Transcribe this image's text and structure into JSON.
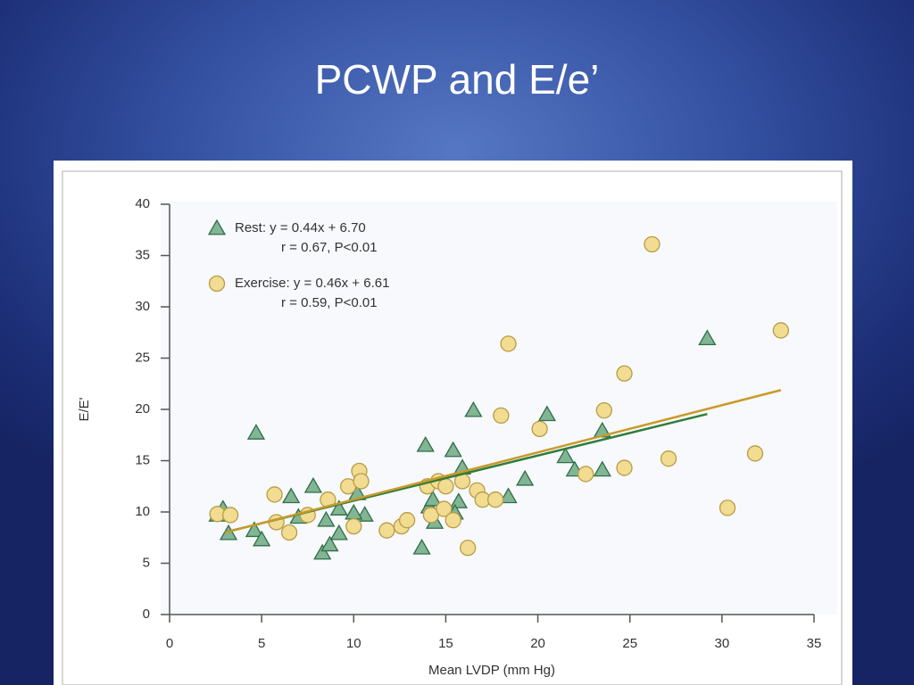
{
  "title": "PCWP and E/e’",
  "chart_data": {
    "type": "scatter",
    "xlabel": "Mean LVDP (mm Hg)",
    "ylabel": "E/E'",
    "xlim": [
      0,
      35
    ],
    "ylim": [
      0,
      40
    ],
    "xticks": [
      0,
      5,
      10,
      15,
      20,
      25,
      30,
      35
    ],
    "yticks": [
      0,
      5,
      10,
      15,
      20,
      25,
      30,
      35,
      40
    ],
    "series": [
      {
        "name": "Rest: y = 0.44x + 6.70",
        "stats": "r = 0.67, P<0.01",
        "marker": "triangle",
        "color": "#82b594",
        "edge_color": "#2f6e48",
        "line_color": "#2e7d3a",
        "fit": {
          "slope": 0.44,
          "intercept": 6.7,
          "xrange": [
            3,
            29.2
          ]
        },
        "x": [
          2.6,
          2.9,
          3.2,
          4.7,
          4.6,
          5.0,
          6.6,
          7.0,
          7.8,
          8.3,
          8.7,
          8.5,
          9.2,
          9.2,
          10.2,
          10.6,
          10.0,
          13.7,
          13.9,
          14.1,
          14.4,
          14.3,
          15.4,
          15.9,
          15.7,
          15.5,
          16.5,
          18.4,
          19.3,
          20.5,
          21.5,
          22.0,
          23.5,
          23.5,
          29.2
        ],
        "values": [
          9.7,
          10.3,
          7.9,
          17.7,
          8.2,
          7.3,
          11.5,
          9.5,
          12.5,
          6.0,
          6.8,
          9.2,
          7.9,
          10.3,
          11.8,
          9.7,
          9.9,
          6.5,
          16.5,
          10.5,
          9.0,
          11.2,
          16.0,
          14.3,
          11.0,
          9.9,
          19.9,
          11.5,
          13.2,
          19.5,
          15.4,
          14.1,
          17.9,
          14.1,
          26.9
        ]
      },
      {
        "name": "Exercise: y = 0.46x + 6.61",
        "stats": "r = 0.59, P<0.01",
        "marker": "circle",
        "color": "#f2dc92",
        "edge_color": "#b89c45",
        "line_color": "#c99a2a",
        "fit": {
          "slope": 0.46,
          "intercept": 6.61,
          "xrange": [
            3,
            33.2
          ]
        },
        "x": [
          2.6,
          3.3,
          5.7,
          5.8,
          6.5,
          7.5,
          8.6,
          9.7,
          10.3,
          10.4,
          10.0,
          11.8,
          12.6,
          12.9,
          14.0,
          14.2,
          14.6,
          15.0,
          14.9,
          15.4,
          15.9,
          16.2,
          16.7,
          17.0,
          17.7,
          18.0,
          18.4,
          20.1,
          22.6,
          23.6,
          24.7,
          24.7,
          27.1,
          26.2,
          30.3,
          31.8,
          33.2
        ],
        "values": [
          9.8,
          9.7,
          11.7,
          9.0,
          8.0,
          9.7,
          11.2,
          12.5,
          14.0,
          13.0,
          8.6,
          8.2,
          8.6,
          9.2,
          12.5,
          9.7,
          13.0,
          12.5,
          10.3,
          9.2,
          13.0,
          6.5,
          12.1,
          11.2,
          11.2,
          19.4,
          26.4,
          18.1,
          13.7,
          19.9,
          23.5,
          14.3,
          15.2,
          36.1,
          10.4,
          15.7,
          27.7
        ]
      }
    ]
  }
}
